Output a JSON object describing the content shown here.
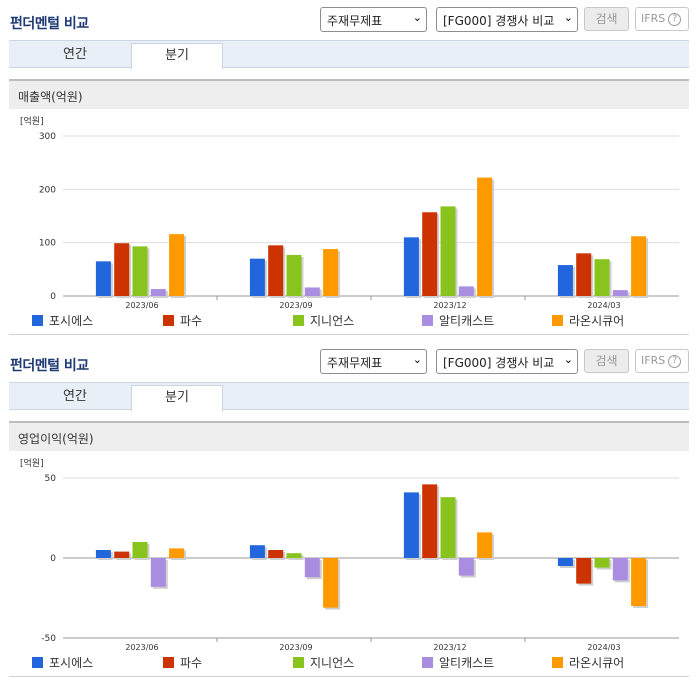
{
  "sections": [
    {
      "title": "펀더멘털 비교",
      "select1": "주재무제표",
      "select2": "[FG000] 경쟁사 비교",
      "search_label": "검색",
      "ifrs_label": "IFRS",
      "tabs": [
        "연간",
        "분기"
      ],
      "active_tab": 1,
      "metric_label": "매출액(억원)"
    },
    {
      "title": "펀더멘털 비교",
      "select1": "주재무제표",
      "select2": "[FG000] 경쟁사 비교",
      "search_label": "검색",
      "ifrs_label": "IFRS",
      "tabs": [
        "연간",
        "분기"
      ],
      "active_tab": 1,
      "metric_label": "영업이익(억원)"
    }
  ],
  "colors": {
    "포시에스": "#2266dd",
    "파수": "#cc3300",
    "지니언스": "#88c41d",
    "알티캐스트": "#a98de0",
    "라온시큐어": "#ff9900"
  },
  "chart_data": [
    {
      "type": "bar",
      "unit_label": "[억원]",
      "categories": [
        "2023/06",
        "2023/09",
        "2023/12",
        "2024/03"
      ],
      "ylim": [
        0,
        300
      ],
      "yticks": [
        0,
        100,
        200,
        300
      ],
      "grid": true,
      "legend_position": "bottom",
      "series": [
        {
          "name": "포시에스",
          "values": [
            65,
            70,
            110,
            58
          ]
        },
        {
          "name": "파수",
          "values": [
            99,
            95,
            157,
            80
          ]
        },
        {
          "name": "지니언스",
          "values": [
            93,
            77,
            168,
            69
          ]
        },
        {
          "name": "알티캐스트",
          "values": [
            13,
            16,
            18,
            11
          ]
        },
        {
          "name": "라온시큐어",
          "values": [
            116,
            88,
            222,
            112
          ]
        }
      ]
    },
    {
      "type": "bar",
      "unit_label": "[억원]",
      "categories": [
        "2023/06",
        "2023/09",
        "2023/12",
        "2024/03"
      ],
      "ylim": [
        -50,
        50
      ],
      "yticks": [
        -50,
        0,
        50
      ],
      "grid": true,
      "legend_position": "bottom",
      "series": [
        {
          "name": "포시에스",
          "values": [
            5,
            8,
            41,
            -5
          ]
        },
        {
          "name": "파수",
          "values": [
            4,
            5,
            46,
            -16
          ]
        },
        {
          "name": "지니언스",
          "values": [
            10,
            3,
            38,
            -6
          ]
        },
        {
          "name": "알티캐스트",
          "values": [
            -18,
            -12,
            -11,
            -14
          ]
        },
        {
          "name": "라온시큐어",
          "values": [
            6,
            -31,
            16,
            -30
          ]
        }
      ]
    }
  ]
}
